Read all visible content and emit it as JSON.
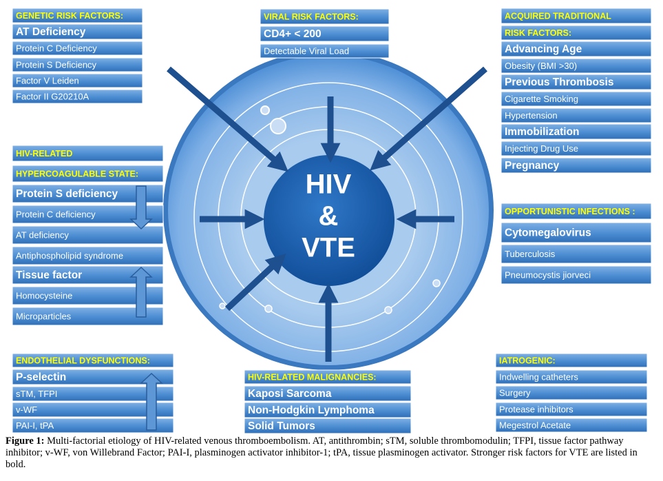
{
  "center": {
    "lines": [
      "HIV",
      "&",
      "VTE"
    ]
  },
  "groups": [
    {
      "header": [
        "GENETIC RISK FACTORS:"
      ],
      "items": [
        {
          "text": "AT Deficiency",
          "bold": true
        },
        {
          "text": "Protein C Deficiency",
          "bold": false
        },
        {
          "text": "Protein S Deficiency",
          "bold": false
        },
        {
          "text": "Factor V Leiden",
          "bold": false
        },
        {
          "text": "Factor II  G20210A",
          "bold": false
        }
      ]
    },
    {
      "header": [
        "VIRAL RISK FACTORS:"
      ],
      "items": [
        {
          "text": "CD4+ < 200",
          "bold": true
        },
        {
          "text": "Detectable Viral Load",
          "bold": false
        }
      ]
    },
    {
      "header": [
        "ACQUIRED TRADITIONAL",
        "RISK FACTORS:"
      ],
      "items": [
        {
          "text": "Advancing Age",
          "bold": true
        },
        {
          "text": "Obesity (BMI >30)",
          "bold": false
        },
        {
          "text": "Previous Thrombosis",
          "bold": true
        },
        {
          "text": "Cigarette Smoking",
          "bold": false
        },
        {
          "text": "Hypertension",
          "bold": false
        },
        {
          "text": "Immobilization",
          "bold": true
        },
        {
          "text": "Injecting Drug Use",
          "bold": false
        },
        {
          "text": "Pregnancy",
          "bold": true
        }
      ]
    },
    {
      "header": [
        "HIV-RELATED",
        "HYPERCOAGULABLE STATE:"
      ],
      "items": [
        {
          "text": "Protein S deficiency",
          "bold": true
        },
        {
          "text": "Protein C deficiency",
          "bold": false
        },
        {
          "text": "AT deficiency",
          "bold": false
        },
        {
          "text": "Antiphospholipid syndrome",
          "bold": false
        },
        {
          "text": "Tissue factor",
          "bold": true
        },
        {
          "text": "Homocysteine",
          "bold": false
        },
        {
          "text": "Microparticles",
          "bold": false
        }
      ]
    },
    {
      "header": [
        "OPPORTUNISTIC INFECTIONS :"
      ],
      "items": [
        {
          "text": "Cytomegalovirus",
          "bold": true
        },
        {
          "text": "Tuberculosis",
          "bold": false
        },
        {
          "text": "Pneumocystis jiorveci",
          "bold": false
        }
      ]
    },
    {
      "header": [
        "ENDOTHELIAL DYSFUNCTIONS:"
      ],
      "items": [
        {
          "text": "P-selectin",
          "bold": true
        },
        {
          "text": "sTM, TFPI",
          "bold": false
        },
        {
          "text": "v-WF",
          "bold": false
        },
        {
          "text": "PAI-I, tPA",
          "bold": false
        }
      ]
    },
    {
      "header": [
        "HIV-RELATED MALIGNANCIES:"
      ],
      "items": [
        {
          "text": "Kaposi Sarcoma",
          "bold": true
        },
        {
          "text": "Non-Hodgkin Lymphoma",
          "bold": true
        },
        {
          "text": "Solid Tumors",
          "bold": true
        }
      ]
    },
    {
      "header": [
        "IATROGENIC:"
      ],
      "items": [
        {
          "text": "Indwelling catheters",
          "bold": false
        },
        {
          "text": "Surgery",
          "bold": false
        },
        {
          "text": "Protease inhibitors",
          "bold": false
        },
        {
          "text": "Megestrol Acetate",
          "bold": false
        }
      ]
    }
  ],
  "caption": {
    "label": "Figure 1:",
    "text": "Multi-factorial etiology of HIV-related venous thromboembolism. AT, antithrombin; sTM, soluble thrombomodulin; TFPI, tissue factor pathway inhibitor; v-WF, von Willebrand Factor; PAI-I, plasminogen activator inhibitor-1; tPA, tissue plasminogen activator. Stronger risk factors for VTE are listed in bold."
  }
}
